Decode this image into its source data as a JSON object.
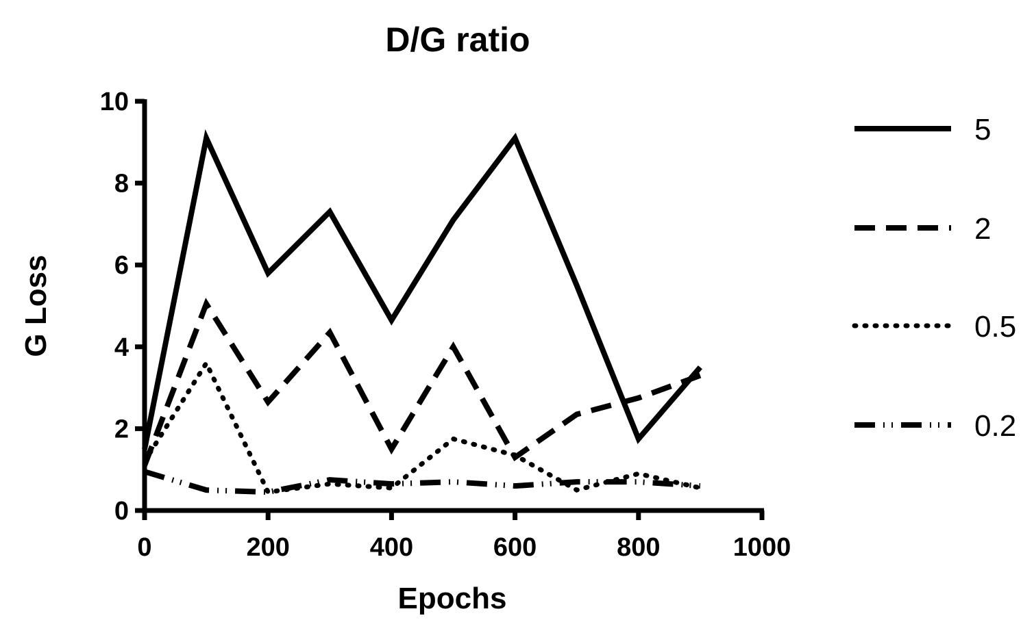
{
  "chart_data": {
    "type": "line",
    "title": "D/G ratio",
    "xlabel": "Epochs",
    "ylabel": "G Loss",
    "xlim": [
      0,
      1000
    ],
    "ylim": [
      0,
      10
    ],
    "xticks": [
      0,
      200,
      400,
      600,
      800,
      1000
    ],
    "yticks": [
      0,
      2,
      4,
      6,
      8,
      10
    ],
    "x": [
      0,
      100,
      200,
      300,
      400,
      500,
      600,
      700,
      800,
      900
    ],
    "grid": false,
    "legend_position": "right",
    "series": [
      {
        "name": "5",
        "style": "solid",
        "values": [
          1.5,
          9.1,
          5.8,
          7.3,
          4.65,
          7.1,
          9.1,
          5.5,
          1.75,
          3.5
        ]
      },
      {
        "name": "2",
        "style": "dashed",
        "values": [
          1.1,
          5.05,
          2.65,
          4.35,
          1.5,
          4.0,
          1.3,
          2.35,
          2.75,
          3.3
        ]
      },
      {
        "name": "0.5",
        "style": "dotted",
        "values": [
          1.2,
          3.6,
          0.45,
          0.65,
          0.55,
          1.75,
          1.35,
          0.5,
          0.9,
          0.55
        ]
      },
      {
        "name": "0.2",
        "style": "dash-dot-dot",
        "values": [
          0.95,
          0.5,
          0.45,
          0.75,
          0.65,
          0.7,
          0.6,
          0.7,
          0.7,
          0.6
        ]
      }
    ]
  }
}
